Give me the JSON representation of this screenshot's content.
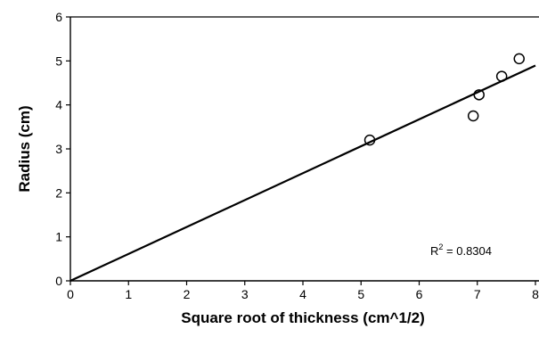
{
  "chart_data": {
    "type": "scatter",
    "title": "",
    "xlabel": "Square root of thickness (cm^1/2)",
    "ylabel": "Radius (cm)",
    "xlim": [
      0,
      8
    ],
    "ylim": [
      0,
      6
    ],
    "xticks": [
      "0",
      "1",
      "2",
      "3",
      "4",
      "5",
      "6",
      "7",
      "8"
    ],
    "yticks": [
      "0",
      "1",
      "2",
      "3",
      "4",
      "5",
      "6"
    ],
    "grid": false,
    "points": [
      {
        "x": 5.15,
        "y": 3.2
      },
      {
        "x": 6.93,
        "y": 3.75
      },
      {
        "x": 7.03,
        "y": 4.23
      },
      {
        "x": 7.42,
        "y": 4.65
      },
      {
        "x": 7.72,
        "y": 5.05
      }
    ],
    "trendline": {
      "type": "linear",
      "intercept": 0,
      "slope": 0.612,
      "x_range": [
        0,
        8
      ]
    },
    "annotation": {
      "base": "R",
      "sup": "2",
      "rest": " = 0.8304"
    }
  }
}
